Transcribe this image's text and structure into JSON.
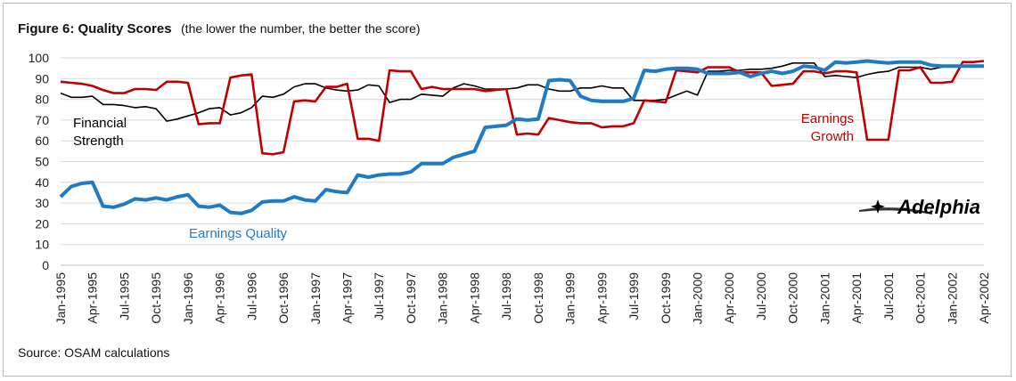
{
  "title": "Figure 6: Quality Scores",
  "subtitle": "(the lower the number, the better the score)",
  "source": "Source: OSAM calculations",
  "logo_text": "Adelphia",
  "chart_data": {
    "type": "line",
    "ylim": [
      0,
      100
    ],
    "yticks": [
      0,
      10,
      20,
      30,
      40,
      50,
      60,
      70,
      80,
      90,
      100
    ],
    "grid": true,
    "x_tick_labels": [
      "Jan-1995",
      "Apr-1995",
      "Jul-1995",
      "Oct-1995",
      "Jan-1996",
      "Apr-1996",
      "Jul-1996",
      "Oct-1996",
      "Jan-1997",
      "Apr-1997",
      "Jul-1997",
      "Oct-1997",
      "Jan-1998",
      "Apr-1998",
      "Jul-1998",
      "Oct-1998",
      "Jan-1999",
      "Apr-1999",
      "Jul-1999",
      "Oct-1999",
      "Jan-2000",
      "Apr-2000",
      "Jul-2000",
      "Oct-2000",
      "Jan-2001",
      "Apr-2001",
      "Jul-2001",
      "Oct-2001",
      "Jan-2002",
      "Apr-2002"
    ],
    "x": [
      "Jan-1995",
      "Feb-1995",
      "Mar-1995",
      "Apr-1995",
      "May-1995",
      "Jun-1995",
      "Jul-1995",
      "Aug-1995",
      "Sep-1995",
      "Oct-1995",
      "Nov-1995",
      "Dec-1995",
      "Jan-1996",
      "Feb-1996",
      "Mar-1996",
      "Apr-1996",
      "May-1996",
      "Jun-1996",
      "Jul-1996",
      "Aug-1996",
      "Sep-1996",
      "Oct-1996",
      "Nov-1996",
      "Dec-1996",
      "Jan-1997",
      "Feb-1997",
      "Mar-1997",
      "Apr-1997",
      "May-1997",
      "Jun-1997",
      "Jul-1997",
      "Aug-1997",
      "Sep-1997",
      "Oct-1997",
      "Nov-1997",
      "Dec-1997",
      "Jan-1998",
      "Feb-1998",
      "Mar-1998",
      "Apr-1998",
      "May-1998",
      "Jun-1998",
      "Jul-1998",
      "Aug-1998",
      "Sep-1998",
      "Oct-1998",
      "Nov-1998",
      "Dec-1998",
      "Jan-1999",
      "Feb-1999",
      "Mar-1999",
      "Apr-1999",
      "May-1999",
      "Jun-1999",
      "Jul-1999",
      "Aug-1999",
      "Sep-1999",
      "Oct-1999",
      "Nov-1999",
      "Dec-1999",
      "Jan-2000",
      "Feb-2000",
      "Mar-2000",
      "Apr-2000",
      "May-2000",
      "Jun-2000",
      "Jul-2000",
      "Aug-2000",
      "Sep-2000",
      "Oct-2000",
      "Nov-2000",
      "Dec-2000",
      "Jan-2001",
      "Feb-2001",
      "Mar-2001",
      "Apr-2001",
      "May-2001",
      "Jun-2001",
      "Jul-2001",
      "Aug-2001",
      "Sep-2001",
      "Oct-2001",
      "Nov-2001",
      "Dec-2001",
      "Jan-2002",
      "Feb-2002",
      "Mar-2002",
      "Apr-2002"
    ],
    "series": [
      {
        "name": "Financial Strength",
        "color": "#000000",
        "label_lines": [
          "Financial",
          "Strength"
        ],
        "values": [
          83,
          81,
          81,
          81.5,
          77.5,
          77.5,
          77,
          76,
          76.5,
          75.5,
          69.5,
          70.5,
          72,
          73.5,
          75.5,
          76,
          72.5,
          73.5,
          76,
          81.5,
          81,
          82.5,
          86,
          87.5,
          87.5,
          85.5,
          84.5,
          84,
          84.5,
          87,
          86.5,
          78.5,
          80,
          80,
          82.5,
          82,
          81.5,
          85.5,
          87.5,
          86.5,
          85,
          85,
          85,
          85.5,
          87,
          87,
          85,
          84,
          84,
          85.5,
          85.5,
          86.5,
          85.5,
          85.5,
          79.5,
          79.5,
          79.5,
          80,
          82,
          84,
          82,
          93.5,
          93.5,
          94,
          94,
          94.5,
          94.5,
          95,
          96,
          97.5,
          97.5,
          97.5,
          91,
          91.5,
          91,
          90.5,
          92,
          93,
          93.5,
          95.5,
          95.5,
          95.5,
          94.5,
          95.5,
          96.5,
          96,
          96,
          96.5
        ]
      },
      {
        "name": "Earnings Growth",
        "color": "#c00000",
        "label_lines": [
          "Earnings",
          "Growth"
        ],
        "values": [
          88.5,
          88,
          87.5,
          86.5,
          84.5,
          83,
          83,
          85,
          85,
          84.5,
          88.5,
          88.5,
          88,
          68,
          68.5,
          68.5,
          90.5,
          91.5,
          92,
          54,
          53.5,
          54.5,
          79,
          79.5,
          79,
          86,
          86,
          87.5,
          61,
          61,
          60,
          94,
          93.5,
          93.5,
          85,
          86,
          85,
          85,
          85,
          85,
          84,
          84.5,
          85,
          63,
          63.5,
          63,
          71,
          70,
          69,
          68.5,
          68.5,
          66.5,
          67,
          67,
          68.5,
          79.5,
          79,
          78.5,
          94,
          93.5,
          93,
          95.5,
          95.5,
          95.5,
          93,
          93,
          93,
          86.5,
          87,
          87.5,
          93.5,
          93.5,
          92.5,
          93.5,
          93.5,
          93,
          60.5,
          60.5,
          60.5,
          94,
          94,
          95.5,
          88,
          88,
          88.5,
          98,
          98,
          98.5
        ]
      },
      {
        "name": "Earnings Quality",
        "color": "#1f7cc4",
        "label_lines": [
          "Earnings Quality"
        ],
        "values": [
          33,
          38,
          39.5,
          40,
          28.5,
          28,
          29.5,
          32,
          31.5,
          32.5,
          31.5,
          33,
          34,
          28.5,
          28,
          29,
          25.5,
          25,
          26.5,
          30.5,
          31,
          31,
          33,
          31.5,
          31,
          36.5,
          35.5,
          35,
          43.5,
          42.5,
          43.5,
          44,
          44,
          45,
          49,
          49,
          49,
          52,
          53.5,
          55,
          66.5,
          67,
          67.5,
          70.5,
          70,
          70.5,
          89,
          89.5,
          89,
          81.5,
          79.5,
          79,
          79,
          79,
          80.5,
          94,
          93.5,
          94.5,
          95,
          95,
          94.5,
          92.5,
          92.5,
          92.5,
          93,
          91,
          92.5,
          93.5,
          92.5,
          93.5,
          96,
          95.5,
          94,
          98,
          97.5,
          98,
          98.5,
          98,
          97.5,
          98,
          98,
          98,
          96.5,
          96,
          96,
          96,
          96,
          96
        ]
      }
    ]
  }
}
